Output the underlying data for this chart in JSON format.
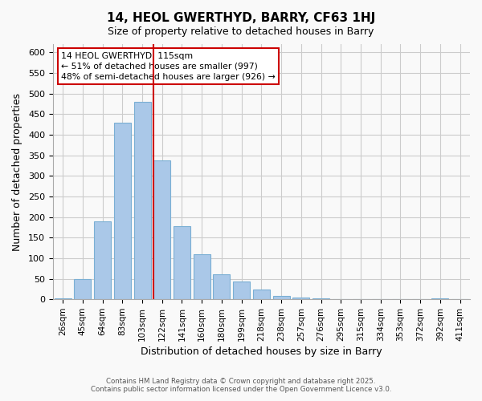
{
  "title": "14, HEOL GWERTHYD, BARRY, CF63 1HJ",
  "subtitle": "Size of property relative to detached houses in Barry",
  "xlabel": "Distribution of detached houses by size in Barry",
  "ylabel": "Number of detached properties",
  "bar_color": "#aac8e8",
  "bar_edge_color": "#7aafd4",
  "categories": [
    "26sqm",
    "45sqm",
    "64sqm",
    "83sqm",
    "103sqm",
    "122sqm",
    "141sqm",
    "160sqm",
    "180sqm",
    "199sqm",
    "218sqm",
    "238sqm",
    "257sqm",
    "276sqm",
    "295sqm",
    "315sqm",
    "334sqm",
    "353sqm",
    "372sqm",
    "392sqm",
    "411sqm"
  ],
  "values": [
    3,
    50,
    190,
    430,
    480,
    338,
    178,
    110,
    60,
    43,
    24,
    8,
    5,
    2,
    1,
    1,
    0,
    0,
    0,
    2,
    0
  ],
  "vline_x_index": 5,
  "vline_color": "#cc0000",
  "ylim": [
    0,
    620
  ],
  "yticks": [
    0,
    50,
    100,
    150,
    200,
    250,
    300,
    350,
    400,
    450,
    500,
    550,
    600
  ],
  "annotation_title": "14 HEOL GWERTHYD: 115sqm",
  "annotation_line1": "← 51% of detached houses are smaller (997)",
  "annotation_line2": "48% of semi-detached houses are larger (926) →",
  "annotation_box_color": "#ffffff",
  "annotation_box_edge": "#cc0000",
  "footnote1": "Contains HM Land Registry data © Crown copyright and database right 2025.",
  "footnote2": "Contains public sector information licensed under the Open Government Licence v3.0.",
  "background_color": "#f9f9f9",
  "grid_color": "#cccccc"
}
